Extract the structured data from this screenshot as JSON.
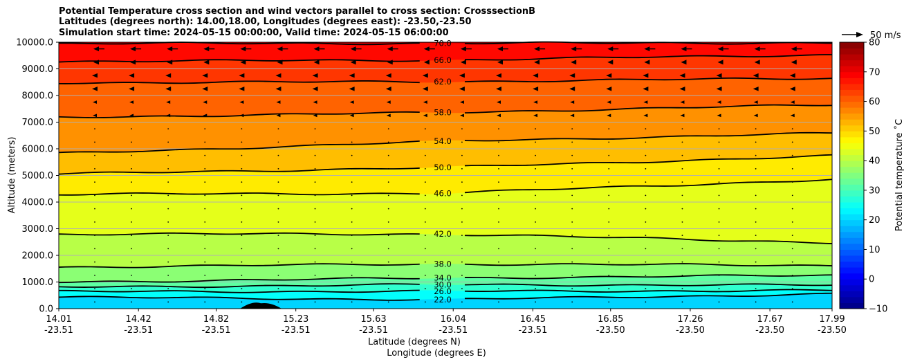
{
  "chart_data": {
    "type": "contour",
    "title_lines": [
      "Potential Temperature cross section and wind vectors parallel to cross section: CrosssectionB",
      "Latitudes (degrees north): 14.00,18.00, Longitudes (degrees east): -23.50,-23.50",
      "Simulation start time: 2024-05-15 00:00:00, Valid time: 2024-05-15 06:00:00"
    ],
    "ylabel": "Altitude (meters)",
    "xlabel_lat": "Latitude (degrees N)",
    "xlabel_lon": "Longitude (degrees E)",
    "ylim": [
      0,
      10000
    ],
    "yticks": [
      "0.0",
      "1000.0",
      "2000.0",
      "3000.0",
      "4000.0",
      "5000.0",
      "6000.0",
      "7000.0",
      "8000.0",
      "9000.0",
      "10000.0"
    ],
    "xticks": [
      {
        "lat": "14.01",
        "lon": "-23.51"
      },
      {
        "lat": "14.42",
        "lon": "-23.51"
      },
      {
        "lat": "14.82",
        "lon": "-23.51"
      },
      {
        "lat": "15.23",
        "lon": "-23.51"
      },
      {
        "lat": "15.63",
        "lon": "-23.51"
      },
      {
        "lat": "16.04",
        "lon": "-23.51"
      },
      {
        "lat": "16.45",
        "lon": "-23.51"
      },
      {
        "lat": "16.85",
        "lon": "-23.50"
      },
      {
        "lat": "17.26",
        "lon": "-23.50"
      },
      {
        "lat": "17.67",
        "lon": "-23.50"
      },
      {
        "lat": "17.99",
        "lon": "-23.50"
      }
    ],
    "grid": true,
    "colorbar": {
      "label": "Potential temperature $^\\circ$C",
      "label_display": "Potential temperature ˚C",
      "range": [
        -10,
        80
      ],
      "ticks": [
        "−10",
        "0",
        "10",
        "20",
        "30",
        "40",
        "50",
        "60",
        "70",
        "80"
      ],
      "colormap": "jet"
    },
    "wind_key": {
      "label": "50 m/s",
      "speed": 50
    },
    "contour_levels": [
      {
        "label": "22.0",
        "value": 22,
        "alt": [
          430,
          340,
          550
        ]
      },
      {
        "label": "26.0",
        "value": 26,
        "alt": [
          640,
          650,
          680
        ]
      },
      {
        "label": "30.0",
        "value": 30,
        "alt": [
          810,
          900,
          880
        ]
      },
      {
        "label": "34.0",
        "value": 34,
        "alt": [
          1000,
          1150,
          1250
        ]
      },
      {
        "label": "38.0",
        "value": 38,
        "alt": [
          1560,
          1680,
          1620
        ]
      },
      {
        "label": "42.0",
        "value": 42,
        "alt": [
          2800,
          2800,
          2480
        ]
      },
      {
        "label": "46.0",
        "value": 46,
        "alt": [
          4290,
          4330,
          4850
        ]
      },
      {
        "label": "50.0",
        "value": 50,
        "alt": [
          5050,
          5300,
          5730
        ]
      },
      {
        "label": "54.0",
        "value": 54,
        "alt": [
          5820,
          6280,
          6580
        ]
      },
      {
        "label": "58.0",
        "value": 58,
        "alt": [
          7180,
          7360,
          7650
        ]
      },
      {
        "label": "62.0",
        "value": 62,
        "alt": [
          8480,
          8520,
          8650
        ]
      },
      {
        "label": "66.0",
        "value": 66,
        "alt": [
          9280,
          9330,
          9530
        ]
      },
      {
        "label": "70.0",
        "value": 70,
        "alt": [
          9950,
          9960,
          9980
        ]
      }
    ],
    "terrain": {
      "peak_lat": 15.05,
      "peak_height": 200
    },
    "wind_arrow_rows": [
      {
        "alt": 9500,
        "direction": "left",
        "magnitude": "strong"
      },
      {
        "alt": 9000,
        "direction": "left",
        "magnitude": "moderate"
      },
      {
        "alt": 8500,
        "direction": "left",
        "magnitude": "moderate"
      },
      {
        "alt": 8000,
        "direction": "left",
        "magnitude": "moderate"
      },
      {
        "alt": 7500,
        "direction": "left",
        "magnitude": "weak"
      }
    ]
  }
}
